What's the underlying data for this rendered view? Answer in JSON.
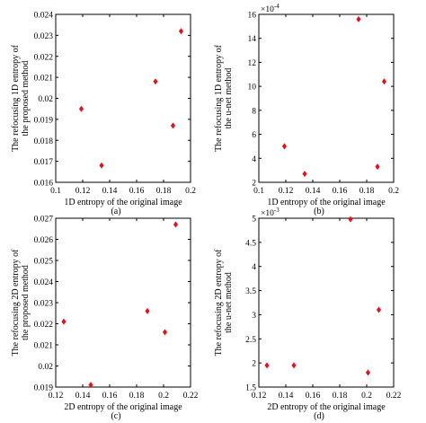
{
  "colors": {
    "marker": "#e0141e",
    "axis": "#000000",
    "background": "#ffffff"
  },
  "chart_data": [
    {
      "id": "a",
      "type": "scatter",
      "caption": "(a)",
      "xlabel": "1D entropy of the original image",
      "ylabel": "The refocusing 1D entropy of the proposed method",
      "xlim": [
        0.1,
        0.2
      ],
      "ylim": [
        0.016,
        0.024
      ],
      "xticks": [
        "0.1",
        "0.12",
        "0.14",
        "0.16",
        "0.18",
        "0.2"
      ],
      "xtick_values": [
        0.1,
        0.12,
        0.14,
        0.16,
        0.18,
        0.2
      ],
      "yticks": [
        "0.016",
        "0.017",
        "0.018",
        "0.019",
        "0.02",
        "0.021",
        "0.022",
        "0.023",
        "0.024"
      ],
      "ytick_values": [
        0.016,
        0.017,
        0.018,
        0.019,
        0.02,
        0.021,
        0.022,
        0.023,
        0.024
      ],
      "multiplier": "",
      "multiplier_exp": "",
      "grid": false,
      "marker": "diamond",
      "points": [
        {
          "x": 0.119,
          "y": 0.0195
        },
        {
          "x": 0.134,
          "y": 0.0168
        },
        {
          "x": 0.174,
          "y": 0.0208
        },
        {
          "x": 0.187,
          "y": 0.0187
        },
        {
          "x": 0.193,
          "y": 0.0232
        }
      ]
    },
    {
      "id": "b",
      "type": "scatter",
      "caption": "(b)",
      "xlabel": "1D entropy of the original image",
      "ylabel": "The refocusing 1D entropy of the u-net method",
      "xlim": [
        0.1,
        0.2
      ],
      "ylim": [
        2,
        16
      ],
      "xticks": [
        "0.1",
        "0.12",
        "0.14",
        "0.16",
        "0.18",
        "0.2"
      ],
      "xtick_values": [
        0.1,
        0.12,
        0.14,
        0.16,
        0.18,
        0.2
      ],
      "yticks": [
        "2",
        "4",
        "6",
        "8",
        "10",
        "12",
        "14",
        "16"
      ],
      "ytick_values": [
        2,
        4,
        6,
        8,
        10,
        12,
        14,
        16
      ],
      "multiplier": "×10",
      "multiplier_exp": "-4",
      "grid": false,
      "marker": "diamond",
      "points": [
        {
          "x": 0.119,
          "y": 5.0
        },
        {
          "x": 0.134,
          "y": 2.7
        },
        {
          "x": 0.174,
          "y": 15.6
        },
        {
          "x": 0.188,
          "y": 3.3
        },
        {
          "x": 0.193,
          "y": 10.4
        }
      ]
    },
    {
      "id": "c",
      "type": "scatter",
      "caption": "(c)",
      "xlabel": "2D entropy of the original image",
      "ylabel": "The refocusing 2D entropy of the proposed method",
      "xlim": [
        0.12,
        0.22
      ],
      "ylim": [
        0.019,
        0.027
      ],
      "xticks": [
        "0.12",
        "0.14",
        "0.16",
        "0.18",
        "0.2",
        "0.22"
      ],
      "xtick_values": [
        0.12,
        0.14,
        0.16,
        0.18,
        0.2,
        0.22
      ],
      "yticks": [
        "0.019",
        "0.02",
        "0.021",
        "0.022",
        "0.023",
        "0.024",
        "0.025",
        "0.026",
        "0.027"
      ],
      "ytick_values": [
        0.019,
        0.02,
        0.021,
        0.022,
        0.023,
        0.024,
        0.025,
        0.026,
        0.027
      ],
      "multiplier": "",
      "multiplier_exp": "",
      "grid": false,
      "marker": "diamond",
      "points": [
        {
          "x": 0.126,
          "y": 0.0221
        },
        {
          "x": 0.146,
          "y": 0.0191
        },
        {
          "x": 0.188,
          "y": 0.0226
        },
        {
          "x": 0.201,
          "y": 0.0216
        },
        {
          "x": 0.209,
          "y": 0.0267
        }
      ]
    },
    {
      "id": "d",
      "type": "scatter",
      "caption": "(d)",
      "xlabel": "2D entropy of the original image",
      "ylabel": "The refocusing 2D entropy of the u-net method",
      "xlim": [
        0.12,
        0.22
      ],
      "ylim": [
        1.5,
        5
      ],
      "xticks": [
        "0.12",
        "0.14",
        "0.16",
        "0.18",
        "0.2",
        "0.22"
      ],
      "xtick_values": [
        0.12,
        0.14,
        0.16,
        0.18,
        0.2,
        0.22
      ],
      "yticks": [
        "1.5",
        "2",
        "2.5",
        "3",
        "3.5",
        "4",
        "4.5",
        "5"
      ],
      "ytick_values": [
        1.5,
        2,
        2.5,
        3,
        3.5,
        4,
        4.5,
        5
      ],
      "multiplier": "×10",
      "multiplier_exp": "-3",
      "grid": false,
      "marker": "diamond",
      "points": [
        {
          "x": 0.126,
          "y": 1.95
        },
        {
          "x": 0.146,
          "y": 1.95
        },
        {
          "x": 0.188,
          "y": 4.98
        },
        {
          "x": 0.201,
          "y": 1.8
        },
        {
          "x": 0.209,
          "y": 3.1
        }
      ]
    }
  ]
}
